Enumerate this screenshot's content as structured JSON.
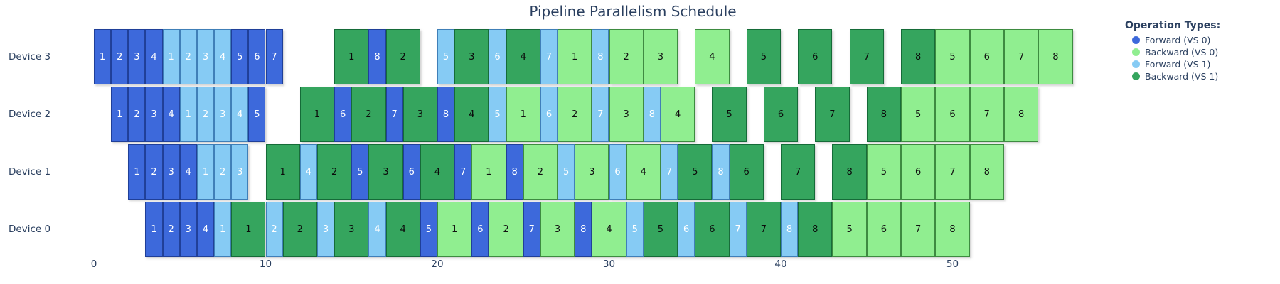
{
  "title": "Pipeline Parallelism Schedule",
  "x_axis": {
    "ticks": [
      0,
      10,
      20,
      30,
      40,
      50
    ]
  },
  "legend": {
    "title": "Operation Types:",
    "items": [
      {
        "label": "Forward (VS 0)",
        "color": "#3d69db"
      },
      {
        "label": "Backward (VS 0)",
        "color": "#90ee90"
      },
      {
        "label": "Forward (VS 1)",
        "color": "#86cbf4"
      },
      {
        "label": "Backward (VS 1)",
        "color": "#35a55e"
      }
    ]
  },
  "chart_data": {
    "type": "gantt-schedule",
    "time_axis_range": [
      0,
      57
    ],
    "unit_widths": {
      "forward": 1,
      "backward": 2
    },
    "types": {
      "F0": {
        "name": "Forward (VS 0)",
        "color": "#3d69db",
        "border": "#1f3f99",
        "text": "#ffffff"
      },
      "B0": {
        "name": "Backward (VS 0)",
        "color": "#90ee90",
        "border": "#3d8b40",
        "text": "#111111"
      },
      "F1": {
        "name": "Forward (VS 1)",
        "color": "#86cbf4",
        "border": "#3f7fb8",
        "text": "#ffffff"
      },
      "B1": {
        "name": "Backward (VS 1)",
        "color": "#35a55e",
        "border": "#156b38",
        "text": "#0b0b0b"
      }
    },
    "rows": [
      {
        "device": "Device 3",
        "blocks": [
          {
            "op": "F0",
            "mb": 1,
            "start": 0,
            "dur": 1
          },
          {
            "op": "F0",
            "mb": 2,
            "start": 1,
            "dur": 1
          },
          {
            "op": "F0",
            "mb": 3,
            "start": 2,
            "dur": 1
          },
          {
            "op": "F0",
            "mb": 4,
            "start": 3,
            "dur": 1
          },
          {
            "op": "F1",
            "mb": 1,
            "start": 4,
            "dur": 1
          },
          {
            "op": "F1",
            "mb": 2,
            "start": 5,
            "dur": 1
          },
          {
            "op": "F1",
            "mb": 3,
            "start": 6,
            "dur": 1
          },
          {
            "op": "F1",
            "mb": 4,
            "start": 7,
            "dur": 1
          },
          {
            "op": "F0",
            "mb": 5,
            "start": 8,
            "dur": 1
          },
          {
            "op": "F0",
            "mb": 6,
            "start": 9,
            "dur": 1
          },
          {
            "op": "F0",
            "mb": 7,
            "start": 10,
            "dur": 1
          },
          {
            "op": "B1",
            "mb": 1,
            "start": 14,
            "dur": 2
          },
          {
            "op": "F0",
            "mb": 8,
            "start": 16,
            "dur": 1
          },
          {
            "op": "B1",
            "mb": 2,
            "start": 17,
            "dur": 2
          },
          {
            "op": "F1",
            "mb": 5,
            "start": 20,
            "dur": 1
          },
          {
            "op": "B1",
            "mb": 3,
            "start": 21,
            "dur": 2
          },
          {
            "op": "F1",
            "mb": 6,
            "start": 23,
            "dur": 1
          },
          {
            "op": "B1",
            "mb": 4,
            "start": 24,
            "dur": 2
          },
          {
            "op": "F1",
            "mb": 7,
            "start": 26,
            "dur": 1
          },
          {
            "op": "B0",
            "mb": 1,
            "start": 27,
            "dur": 2
          },
          {
            "op": "F1",
            "mb": 8,
            "start": 29,
            "dur": 1
          },
          {
            "op": "B0",
            "mb": 2,
            "start": 30,
            "dur": 2
          },
          {
            "op": "B0",
            "mb": 3,
            "start": 32,
            "dur": 2
          },
          {
            "op": "B0",
            "mb": 4,
            "start": 35,
            "dur": 2
          },
          {
            "op": "B1",
            "mb": 5,
            "start": 38,
            "dur": 2
          },
          {
            "op": "B1",
            "mb": 6,
            "start": 41,
            "dur": 2
          },
          {
            "op": "B1",
            "mb": 7,
            "start": 44,
            "dur": 2
          },
          {
            "op": "B1",
            "mb": 8,
            "start": 47,
            "dur": 2
          },
          {
            "op": "B0",
            "mb": 5,
            "start": 49,
            "dur": 2
          },
          {
            "op": "B0",
            "mb": 6,
            "start": 51,
            "dur": 2
          },
          {
            "op": "B0",
            "mb": 7,
            "start": 53,
            "dur": 2
          },
          {
            "op": "B0",
            "mb": 8,
            "start": 55,
            "dur": 2
          }
        ]
      },
      {
        "device": "Device 2",
        "blocks": [
          {
            "op": "F0",
            "mb": 1,
            "start": 1,
            "dur": 1
          },
          {
            "op": "F0",
            "mb": 2,
            "start": 2,
            "dur": 1
          },
          {
            "op": "F0",
            "mb": 3,
            "start": 3,
            "dur": 1
          },
          {
            "op": "F0",
            "mb": 4,
            "start": 4,
            "dur": 1
          },
          {
            "op": "F1",
            "mb": 1,
            "start": 5,
            "dur": 1
          },
          {
            "op": "F1",
            "mb": 2,
            "start": 6,
            "dur": 1
          },
          {
            "op": "F1",
            "mb": 3,
            "start": 7,
            "dur": 1
          },
          {
            "op": "F1",
            "mb": 4,
            "start": 8,
            "dur": 1
          },
          {
            "op": "F0",
            "mb": 5,
            "start": 9,
            "dur": 1
          },
          {
            "op": "B1",
            "mb": 1,
            "start": 12,
            "dur": 2
          },
          {
            "op": "F0",
            "mb": 6,
            "start": 14,
            "dur": 1
          },
          {
            "op": "B1",
            "mb": 2,
            "start": 15,
            "dur": 2
          },
          {
            "op": "F0",
            "mb": 7,
            "start": 17,
            "dur": 1
          },
          {
            "op": "B1",
            "mb": 3,
            "start": 18,
            "dur": 2
          },
          {
            "op": "F0",
            "mb": 8,
            "start": 20,
            "dur": 1
          },
          {
            "op": "B1",
            "mb": 4,
            "start": 21,
            "dur": 2
          },
          {
            "op": "F1",
            "mb": 5,
            "start": 23,
            "dur": 1
          },
          {
            "op": "B0",
            "mb": 1,
            "start": 24,
            "dur": 2
          },
          {
            "op": "F1",
            "mb": 6,
            "start": 26,
            "dur": 1
          },
          {
            "op": "B0",
            "mb": 2,
            "start": 27,
            "dur": 2
          },
          {
            "op": "F1",
            "mb": 7,
            "start": 29,
            "dur": 1
          },
          {
            "op": "B0",
            "mb": 3,
            "start": 30,
            "dur": 2
          },
          {
            "op": "F1",
            "mb": 8,
            "start": 32,
            "dur": 1
          },
          {
            "op": "B0",
            "mb": 4,
            "start": 33,
            "dur": 2
          },
          {
            "op": "B1",
            "mb": 5,
            "start": 36,
            "dur": 2
          },
          {
            "op": "B1",
            "mb": 6,
            "start": 39,
            "dur": 2
          },
          {
            "op": "B1",
            "mb": 7,
            "start": 42,
            "dur": 2
          },
          {
            "op": "B1",
            "mb": 8,
            "start": 45,
            "dur": 2
          },
          {
            "op": "B0",
            "mb": 5,
            "start": 47,
            "dur": 2
          },
          {
            "op": "B0",
            "mb": 6,
            "start": 49,
            "dur": 2
          },
          {
            "op": "B0",
            "mb": 7,
            "start": 51,
            "dur": 2
          },
          {
            "op": "B0",
            "mb": 8,
            "start": 53,
            "dur": 2
          }
        ]
      },
      {
        "device": "Device 1",
        "blocks": [
          {
            "op": "F0",
            "mb": 1,
            "start": 2,
            "dur": 1
          },
          {
            "op": "F0",
            "mb": 2,
            "start": 3,
            "dur": 1
          },
          {
            "op": "F0",
            "mb": 3,
            "start": 4,
            "dur": 1
          },
          {
            "op": "F0",
            "mb": 4,
            "start": 5,
            "dur": 1
          },
          {
            "op": "F1",
            "mb": 1,
            "start": 6,
            "dur": 1
          },
          {
            "op": "F1",
            "mb": 2,
            "start": 7,
            "dur": 1
          },
          {
            "op": "F1",
            "mb": 3,
            "start": 8,
            "dur": 1
          },
          {
            "op": "B1",
            "mb": 1,
            "start": 10,
            "dur": 2
          },
          {
            "op": "F1",
            "mb": 4,
            "start": 12,
            "dur": 1
          },
          {
            "op": "B1",
            "mb": 2,
            "start": 13,
            "dur": 2
          },
          {
            "op": "F0",
            "mb": 5,
            "start": 15,
            "dur": 1
          },
          {
            "op": "B1",
            "mb": 3,
            "start": 16,
            "dur": 2
          },
          {
            "op": "F0",
            "mb": 6,
            "start": 18,
            "dur": 1
          },
          {
            "op": "B1",
            "mb": 4,
            "start": 19,
            "dur": 2
          },
          {
            "op": "F0",
            "mb": 7,
            "start": 21,
            "dur": 1
          },
          {
            "op": "B0",
            "mb": 1,
            "start": 22,
            "dur": 2
          },
          {
            "op": "F0",
            "mb": 8,
            "start": 24,
            "dur": 1
          },
          {
            "op": "B0",
            "mb": 2,
            "start": 25,
            "dur": 2
          },
          {
            "op": "F1",
            "mb": 5,
            "start": 27,
            "dur": 1
          },
          {
            "op": "B0",
            "mb": 3,
            "start": 28,
            "dur": 2
          },
          {
            "op": "F1",
            "mb": 6,
            "start": 30,
            "dur": 1
          },
          {
            "op": "B0",
            "mb": 4,
            "start": 31,
            "dur": 2
          },
          {
            "op": "F1",
            "mb": 7,
            "start": 33,
            "dur": 1
          },
          {
            "op": "B1",
            "mb": 5,
            "start": 34,
            "dur": 2
          },
          {
            "op": "F1",
            "mb": 8,
            "start": 36,
            "dur": 1
          },
          {
            "op": "B1",
            "mb": 6,
            "start": 37,
            "dur": 2
          },
          {
            "op": "B1",
            "mb": 7,
            "start": 40,
            "dur": 2
          },
          {
            "op": "B1",
            "mb": 8,
            "start": 43,
            "dur": 2
          },
          {
            "op": "B0",
            "mb": 5,
            "start": 45,
            "dur": 2
          },
          {
            "op": "B0",
            "mb": 6,
            "start": 47,
            "dur": 2
          },
          {
            "op": "B0",
            "mb": 7,
            "start": 49,
            "dur": 2
          },
          {
            "op": "B0",
            "mb": 8,
            "start": 51,
            "dur": 2
          }
        ]
      },
      {
        "device": "Device 0",
        "blocks": [
          {
            "op": "F0",
            "mb": 1,
            "start": 3,
            "dur": 1
          },
          {
            "op": "F0",
            "mb": 2,
            "start": 4,
            "dur": 1
          },
          {
            "op": "F0",
            "mb": 3,
            "start": 5,
            "dur": 1
          },
          {
            "op": "F0",
            "mb": 4,
            "start": 6,
            "dur": 1
          },
          {
            "op": "F1",
            "mb": 1,
            "start": 7,
            "dur": 1
          },
          {
            "op": "B1",
            "mb": 1,
            "start": 8,
            "dur": 2
          },
          {
            "op": "F1",
            "mb": 2,
            "start": 10,
            "dur": 1
          },
          {
            "op": "B1",
            "mb": 2,
            "start": 11,
            "dur": 2
          },
          {
            "op": "F1",
            "mb": 3,
            "start": 13,
            "dur": 1
          },
          {
            "op": "B1",
            "mb": 3,
            "start": 14,
            "dur": 2
          },
          {
            "op": "F1",
            "mb": 4,
            "start": 16,
            "dur": 1
          },
          {
            "op": "B1",
            "mb": 4,
            "start": 17,
            "dur": 2
          },
          {
            "op": "F0",
            "mb": 5,
            "start": 19,
            "dur": 1
          },
          {
            "op": "B0",
            "mb": 1,
            "start": 20,
            "dur": 2
          },
          {
            "op": "F0",
            "mb": 6,
            "start": 22,
            "dur": 1
          },
          {
            "op": "B0",
            "mb": 2,
            "start": 23,
            "dur": 2
          },
          {
            "op": "F0",
            "mb": 7,
            "start": 25,
            "dur": 1
          },
          {
            "op": "B0",
            "mb": 3,
            "start": 26,
            "dur": 2
          },
          {
            "op": "F0",
            "mb": 8,
            "start": 28,
            "dur": 1
          },
          {
            "op": "B0",
            "mb": 4,
            "start": 29,
            "dur": 2
          },
          {
            "op": "F1",
            "mb": 5,
            "start": 31,
            "dur": 1
          },
          {
            "op": "B1",
            "mb": 5,
            "start": 32,
            "dur": 2
          },
          {
            "op": "F1",
            "mb": 6,
            "start": 34,
            "dur": 1
          },
          {
            "op": "B1",
            "mb": 6,
            "start": 35,
            "dur": 2
          },
          {
            "op": "F1",
            "mb": 7,
            "start": 37,
            "dur": 1
          },
          {
            "op": "B1",
            "mb": 7,
            "start": 38,
            "dur": 2
          },
          {
            "op": "F1",
            "mb": 8,
            "start": 40,
            "dur": 1
          },
          {
            "op": "B1",
            "mb": 8,
            "start": 41,
            "dur": 2
          },
          {
            "op": "B0",
            "mb": 5,
            "start": 43,
            "dur": 2
          },
          {
            "op": "B0",
            "mb": 6,
            "start": 45,
            "dur": 2
          },
          {
            "op": "B0",
            "mb": 7,
            "start": 47,
            "dur": 2
          },
          {
            "op": "B0",
            "mb": 8,
            "start": 49,
            "dur": 2
          }
        ]
      }
    ]
  }
}
